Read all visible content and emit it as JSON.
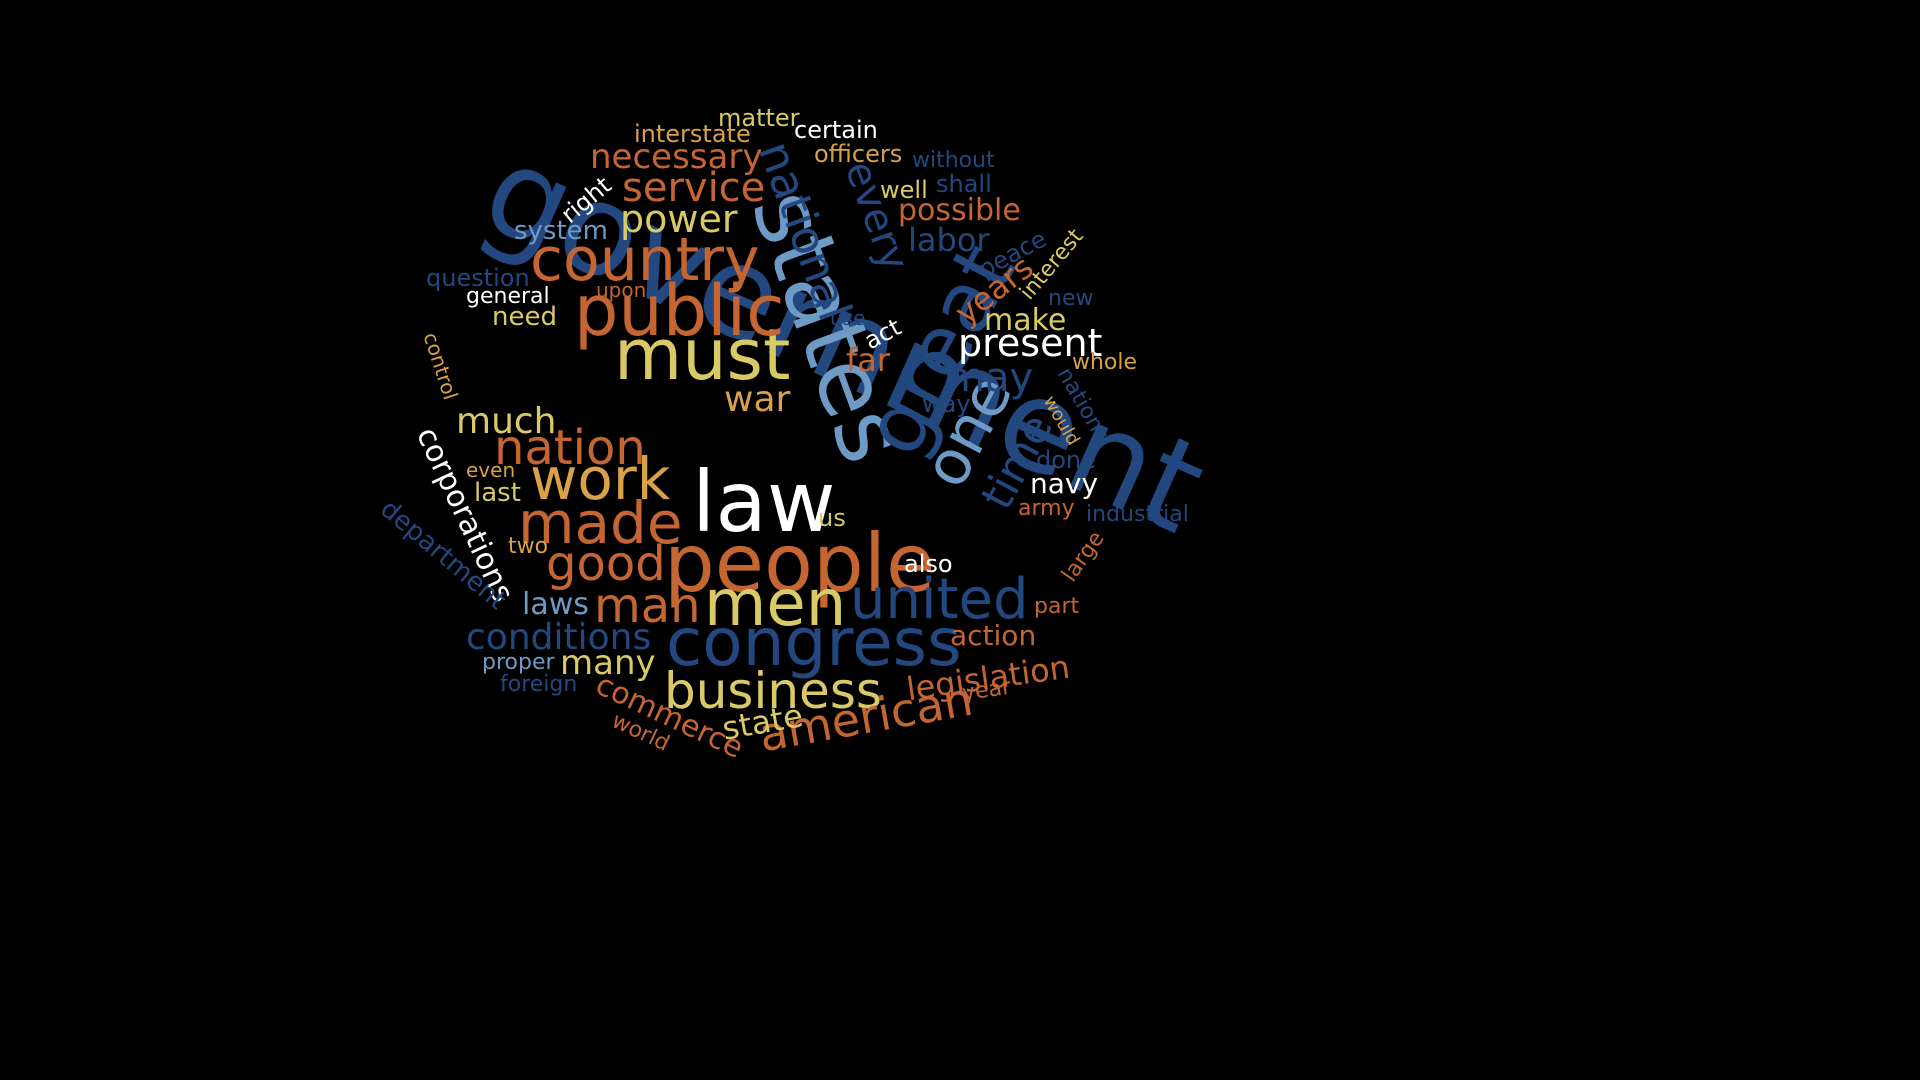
{
  "colors": {
    "dark_blue": "#23487f",
    "steel_blue": "#6e9bc5",
    "orange": "#c46532",
    "yellow": "#d9ca67",
    "tan": "#d9a14a",
    "white": "#ffffff",
    "background": "#000000"
  },
  "words": [
    {
      "text": "government",
      "color": "dark_blue"
    },
    {
      "text": "states",
      "color": "steel_blue"
    },
    {
      "text": "law",
      "color": "white"
    },
    {
      "text": "great",
      "color": "dark_blue"
    },
    {
      "text": "people",
      "color": "orange"
    },
    {
      "text": "must",
      "color": "yellow"
    },
    {
      "text": "public",
      "color": "orange"
    },
    {
      "text": "congress",
      "color": "dark_blue"
    },
    {
      "text": "men",
      "color": "yellow"
    },
    {
      "text": "country",
      "color": "orange"
    },
    {
      "text": "work",
      "color": "tan"
    },
    {
      "text": "made",
      "color": "orange"
    },
    {
      "text": "united",
      "color": "dark_blue"
    },
    {
      "text": "business",
      "color": "yellow"
    },
    {
      "text": "national",
      "color": "dark_blue"
    },
    {
      "text": "one",
      "color": "steel_blue"
    },
    {
      "text": "nation",
      "color": "orange"
    },
    {
      "text": "man",
      "color": "orange"
    },
    {
      "text": "good",
      "color": "orange"
    },
    {
      "text": "american",
      "color": "orange"
    },
    {
      "text": "every",
      "color": "dark_blue"
    },
    {
      "text": "service",
      "color": "orange"
    },
    {
      "text": "power",
      "color": "yellow"
    },
    {
      "text": "present",
      "color": "white"
    },
    {
      "text": "may",
      "color": "dark_blue"
    },
    {
      "text": "time",
      "color": "dark_blue"
    },
    {
      "text": "conditions",
      "color": "dark_blue"
    },
    {
      "text": "much",
      "color": "yellow"
    },
    {
      "text": "war",
      "color": "tan"
    },
    {
      "text": "necessary",
      "color": "orange"
    },
    {
      "text": "many",
      "color": "yellow"
    },
    {
      "text": "corporations",
      "color": "white"
    },
    {
      "text": "state",
      "color": "yellow"
    },
    {
      "text": "commerce",
      "color": "orange"
    },
    {
      "text": "labor",
      "color": "dark_blue"
    },
    {
      "text": "legislation",
      "color": "orange"
    },
    {
      "text": "years",
      "color": "orange"
    },
    {
      "text": "possible",
      "color": "orange"
    },
    {
      "text": "make",
      "color": "yellow"
    },
    {
      "text": "laws",
      "color": "steel_blue"
    },
    {
      "text": "far",
      "color": "orange"
    },
    {
      "text": "action",
      "color": "orange"
    },
    {
      "text": "navy",
      "color": "white"
    },
    {
      "text": "department",
      "color": "dark_blue"
    },
    {
      "text": "system",
      "color": "steel_blue"
    },
    {
      "text": "need",
      "color": "yellow"
    },
    {
      "text": "interstate",
      "color": "tan"
    },
    {
      "text": "done",
      "color": "dark_blue"
    },
    {
      "text": "way",
      "color": "dark_blue"
    },
    {
      "text": "last",
      "color": "yellow"
    },
    {
      "text": "officers",
      "color": "tan"
    },
    {
      "text": "certain",
      "color": "white"
    },
    {
      "text": "matter",
      "color": "yellow"
    },
    {
      "text": "right",
      "color": "white"
    },
    {
      "text": "without",
      "color": "dark_blue"
    },
    {
      "text": "shall",
      "color": "dark_blue"
    },
    {
      "text": "well",
      "color": "yellow"
    },
    {
      "text": "question",
      "color": "dark_blue"
    },
    {
      "text": "general",
      "color": "white"
    },
    {
      "text": "upon",
      "color": "orange"
    },
    {
      "text": "peace",
      "color": "dark_blue"
    },
    {
      "text": "interest",
      "color": "yellow"
    },
    {
      "text": "new",
      "color": "dark_blue"
    },
    {
      "text": "use",
      "color": "dark_blue"
    },
    {
      "text": "act",
      "color": "white"
    },
    {
      "text": "control",
      "color": "tan"
    },
    {
      "text": "whole",
      "color": "tan"
    },
    {
      "text": "nations",
      "color": "dark_blue"
    },
    {
      "text": "would",
      "color": "tan"
    },
    {
      "text": "industrial",
      "color": "dark_blue"
    },
    {
      "text": "army",
      "color": "orange"
    },
    {
      "text": "large",
      "color": "orange"
    },
    {
      "text": "part",
      "color": "orange"
    },
    {
      "text": "also",
      "color": "white"
    },
    {
      "text": "us",
      "color": "yellow"
    },
    {
      "text": "even",
      "color": "tan"
    },
    {
      "text": "two",
      "color": "tan"
    },
    {
      "text": "proper",
      "color": "steel_blue"
    },
    {
      "text": "foreign",
      "color": "dark_blue"
    },
    {
      "text": "year",
      "color": "orange"
    },
    {
      "text": "world",
      "color": "orange"
    }
  ]
}
